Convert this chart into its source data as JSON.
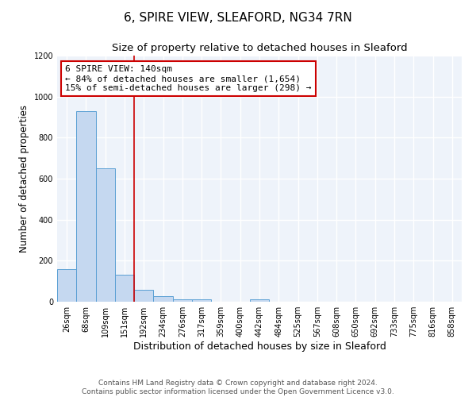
{
  "title": "6, SPIRE VIEW, SLEAFORD, NG34 7RN",
  "subtitle": "Size of property relative to detached houses in Sleaford",
  "xlabel": "Distribution of detached houses by size in Sleaford",
  "ylabel": "Number of detached properties",
  "bar_labels": [
    "26sqm",
    "68sqm",
    "109sqm",
    "151sqm",
    "192sqm",
    "234sqm",
    "276sqm",
    "317sqm",
    "359sqm",
    "400sqm",
    "442sqm",
    "484sqm",
    "525sqm",
    "567sqm",
    "608sqm",
    "650sqm",
    "692sqm",
    "733sqm",
    "775sqm",
    "816sqm",
    "858sqm"
  ],
  "bar_values": [
    160,
    930,
    650,
    130,
    60,
    28,
    12,
    12,
    0,
    0,
    12,
    0,
    0,
    0,
    0,
    0,
    0,
    0,
    0,
    0,
    0
  ],
  "bar_color": "#c5d8f0",
  "bar_edge_color": "#5a9fd4",
  "red_line_x": 3.5,
  "annotation_text": "6 SPIRE VIEW: 140sqm\n← 84% of detached houses are smaller (1,654)\n15% of semi-detached houses are larger (298) →",
  "annotation_box_color": "white",
  "annotation_edge_color": "#cc0000",
  "red_line_color": "#cc0000",
  "ylim": [
    0,
    1200
  ],
  "yticks": [
    0,
    200,
    400,
    600,
    800,
    1000,
    1200
  ],
  "background_color": "#eef3fa",
  "grid_color": "white",
  "footer_text": "Contains HM Land Registry data © Crown copyright and database right 2024.\nContains public sector information licensed under the Open Government Licence v3.0.",
  "title_fontsize": 11,
  "subtitle_fontsize": 9.5,
  "xlabel_fontsize": 9,
  "ylabel_fontsize": 8.5,
  "tick_fontsize": 7,
  "annotation_fontsize": 8,
  "footer_fontsize": 6.5
}
